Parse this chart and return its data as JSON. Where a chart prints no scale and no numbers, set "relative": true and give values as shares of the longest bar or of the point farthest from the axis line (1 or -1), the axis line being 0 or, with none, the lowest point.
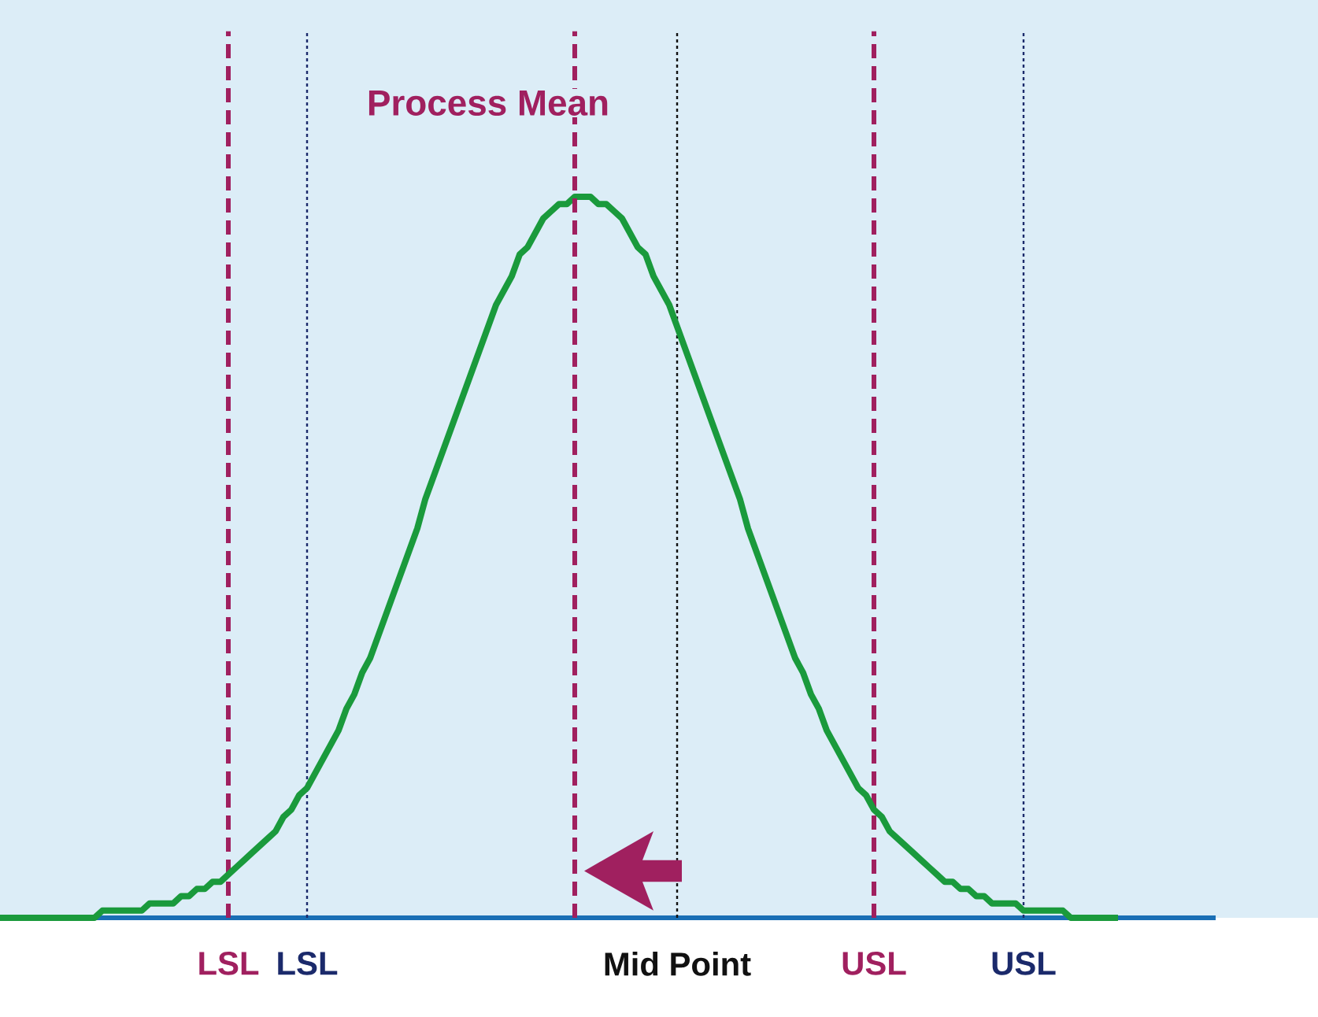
{
  "chart_data": {
    "type": "line",
    "relative": true,
    "categories": [
      null,
      null,
      null,
      null,
      null,
      null,
      null,
      null,
      null,
      null,
      null,
      null,
      null,
      null,
      null,
      null,
      null,
      null,
      null,
      null,
      null,
      null,
      null,
      null,
      null,
      null,
      null,
      null,
      null,
      "LSL",
      null,
      null,
      null,
      null,
      null,
      null,
      null,
      null,
      null,
      "LSL",
      null,
      null,
      null,
      null,
      null,
      null,
      null,
      null,
      null,
      null,
      null,
      null,
      null,
      null,
      null,
      null,
      null,
      null,
      null,
      null,
      null,
      null,
      null,
      null,
      null,
      null,
      null,
      null,
      null,
      null,
      null,
      null,
      null,
      null,
      null,
      null,
      null,
      null,
      null,
      null,
      null,
      null,
      null,
      null,
      null,
      null,
      "Mid Point",
      null,
      null,
      null,
      null,
      null,
      null,
      null,
      null,
      null,
      null,
      null,
      null,
      null,
      null,
      null,
      null,
      null,
      null,
      null,
      null,
      null,
      null,
      null,
      null,
      "USL",
      null,
      null,
      null,
      null,
      null,
      null,
      null,
      null,
      null,
      null,
      null,
      null,
      null,
      null,
      null,
      null,
      null,
      null,
      "USL",
      null,
      null,
      null,
      null,
      null,
      null,
      null,
      null,
      null,
      null,
      null,
      null
    ],
    "series": [
      {
        "color": "#1a9a3c",
        "values": [
          0,
          0,
          0,
          0,
          0,
          0,
          0,
          0,
          0,
          0,
          0,
          0,
          0,
          0.01,
          0.01,
          0.01,
          0.01,
          0.01,
          0.01,
          0.02,
          0.02,
          0.02,
          0.02,
          0.03,
          0.03,
          0.04,
          0.04,
          0.05,
          0.05,
          0.06,
          0.07,
          0.08,
          0.09,
          0.1,
          0.11,
          0.12,
          0.14,
          0.15,
          0.17,
          0.18,
          0.2,
          0.22,
          0.24,
          0.26,
          0.29,
          0.31,
          0.34,
          0.36,
          0.39,
          0.42,
          0.45,
          0.48,
          0.51,
          0.54,
          0.58,
          0.61,
          0.64,
          0.67,
          0.7,
          0.73,
          0.76,
          0.79,
          0.82,
          0.85,
          0.87,
          0.89,
          0.92,
          0.93,
          0.95,
          0.97,
          0.98,
          0.99,
          0.99,
          1,
          1,
          1,
          0.99,
          0.99,
          0.98,
          0.97,
          0.95,
          0.93,
          0.92,
          0.89,
          0.87,
          0.85,
          0.82,
          0.79,
          0.76,
          0.73,
          0.7,
          0.67,
          0.64,
          0.61,
          0.58,
          0.54,
          0.51,
          0.48,
          0.45,
          0.42,
          0.39,
          0.36,
          0.34,
          0.31,
          0.29,
          0.26,
          0.24,
          0.22,
          0.2,
          0.18,
          0.17,
          0.15,
          0.14,
          0.12,
          0.11,
          0.1,
          0.09,
          0.08,
          0.07,
          0.06,
          0.05,
          0.05,
          0.04,
          0.04,
          0.03,
          0.03,
          0.02,
          0.02,
          0.02,
          0.02,
          0.01,
          0.01,
          0.01,
          0.01,
          0.01,
          0.01,
          0,
          0,
          0,
          0,
          0,
          0,
          0
        ]
      }
    ],
    "line_style": "solid",
    "marker": "none",
    "grid": false,
    "annotations": [
      "Process Mean"
    ]
  }
}
